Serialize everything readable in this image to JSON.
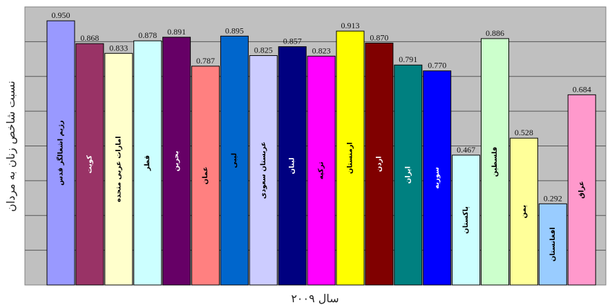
{
  "chart_data": {
    "type": "bar",
    "xlabel": "سال ۲۰۰۹",
    "ylabel": "نسبت شاخص زنان به مردان",
    "ylim": [
      0,
      1.0
    ],
    "grid": true,
    "categories": [
      "رژیم اشغالگر قدس",
      "کویت",
      "امارات عربی متحده",
      "قطر",
      "بحرین",
      "عمان",
      "لیبی",
      "عربستان سعودی",
      "لبنان",
      "ترکیه",
      "ارمنستان",
      "اردن",
      "ایران",
      "سوریه",
      "پاکستان",
      "فلسطین",
      "یمن",
      "افغانستان",
      "عراق"
    ],
    "values": [
      0.95,
      0.868,
      0.833,
      0.878,
      0.891,
      0.787,
      0.895,
      0.825,
      0.857,
      0.823,
      0.913,
      0.87,
      0.791,
      0.77,
      0.467,
      0.886,
      0.528,
      0.292,
      0.684
    ],
    "value_labels": [
      "0.950",
      "0.868",
      "0.833",
      "0.878",
      "0.891",
      "0.787",
      "0.895",
      "0.825",
      "0.857",
      "0.823",
      "0.913",
      "0.870",
      "0.791",
      "0.770",
      "0.467",
      "0.886",
      "0.528",
      "0.292",
      "0.684"
    ],
    "colors": [
      "#9999ff",
      "#993366",
      "#ffffcc",
      "#ccffff",
      "#660066",
      "#ff8080",
      "#0066cc",
      "#ccccff",
      "#000080",
      "#ff00ff",
      "#ffff00",
      "#800000",
      "#008080",
      "#0000ff",
      "#ccffff",
      "#ccffcc",
      "#ffff99",
      "#99ccff",
      "#ff99cc"
    ],
    "label_colors": [
      "#000000",
      "#ffffff",
      "#000000",
      "#000000",
      "#ffffff",
      "#000000",
      "#000000",
      "#000000",
      "#ffffff",
      "#000000",
      "#000000",
      "#ffffff",
      "#ffffff",
      "#ffffff",
      "#000000",
      "#000000",
      "#000000",
      "#000000",
      "#000000"
    ],
    "plot_background": "#c0c0c0"
  }
}
